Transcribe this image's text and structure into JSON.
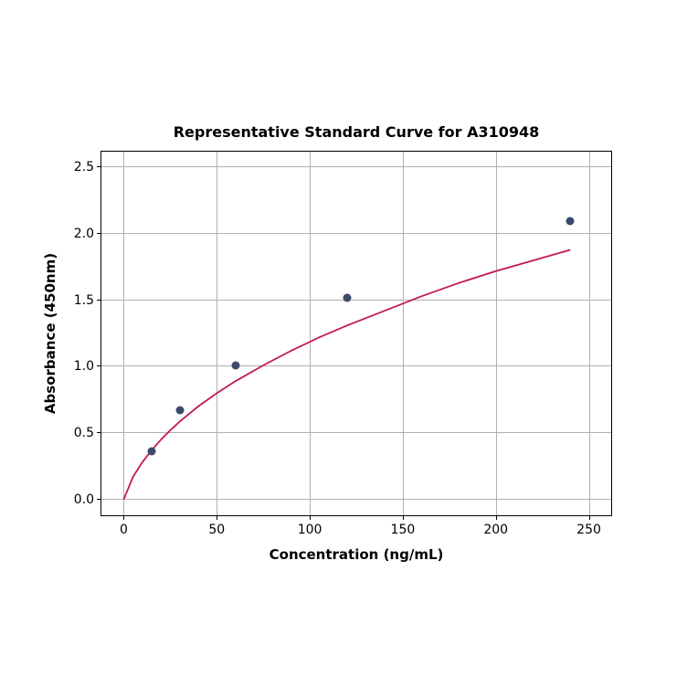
{
  "chart": {
    "type": "scatter-line",
    "title": "Representative Standard Curve for A310948",
    "title_fontsize": 16,
    "title_fontweight": "bold",
    "xlabel": "Concentration (ng/mL)",
    "ylabel": "Absorbance (450nm)",
    "axis_label_fontsize": 15,
    "axis_label_fontweight": "bold",
    "tick_fontsize": 14,
    "background_color": "#ffffff",
    "grid_color": "#b0b0b0",
    "border_color": "#000000",
    "xlim": [
      -12,
      262
    ],
    "ylim": [
      -0.12,
      2.62
    ],
    "xticks": [
      0,
      50,
      100,
      150,
      200,
      250
    ],
    "yticks": [
      0.0,
      0.5,
      1.0,
      1.5,
      2.0,
      2.5
    ],
    "ytick_labels": [
      "0.0",
      "0.5",
      "1.0",
      "1.5",
      "2.0",
      "2.5"
    ],
    "scatter": {
      "x": [
        15,
        30,
        60,
        120,
        240
      ],
      "y": [
        0.36,
        0.67,
        1.01,
        1.52,
        2.1
      ],
      "marker_color": "#3b4a6b",
      "marker_size": 9
    },
    "curve": {
      "x": [
        0,
        5,
        10,
        15,
        20,
        25,
        30,
        40,
        50,
        60,
        75,
        90,
        105,
        120,
        140,
        160,
        180,
        200,
        220,
        240
      ],
      "y": [
        0.0,
        0.17,
        0.28,
        0.37,
        0.45,
        0.52,
        0.585,
        0.7,
        0.8,
        0.89,
        1.01,
        1.12,
        1.22,
        1.31,
        1.42,
        1.53,
        1.63,
        1.72,
        1.8,
        1.88
      ],
      "line_color": "#c2185b",
      "line_width": 1.8
    }
  }
}
